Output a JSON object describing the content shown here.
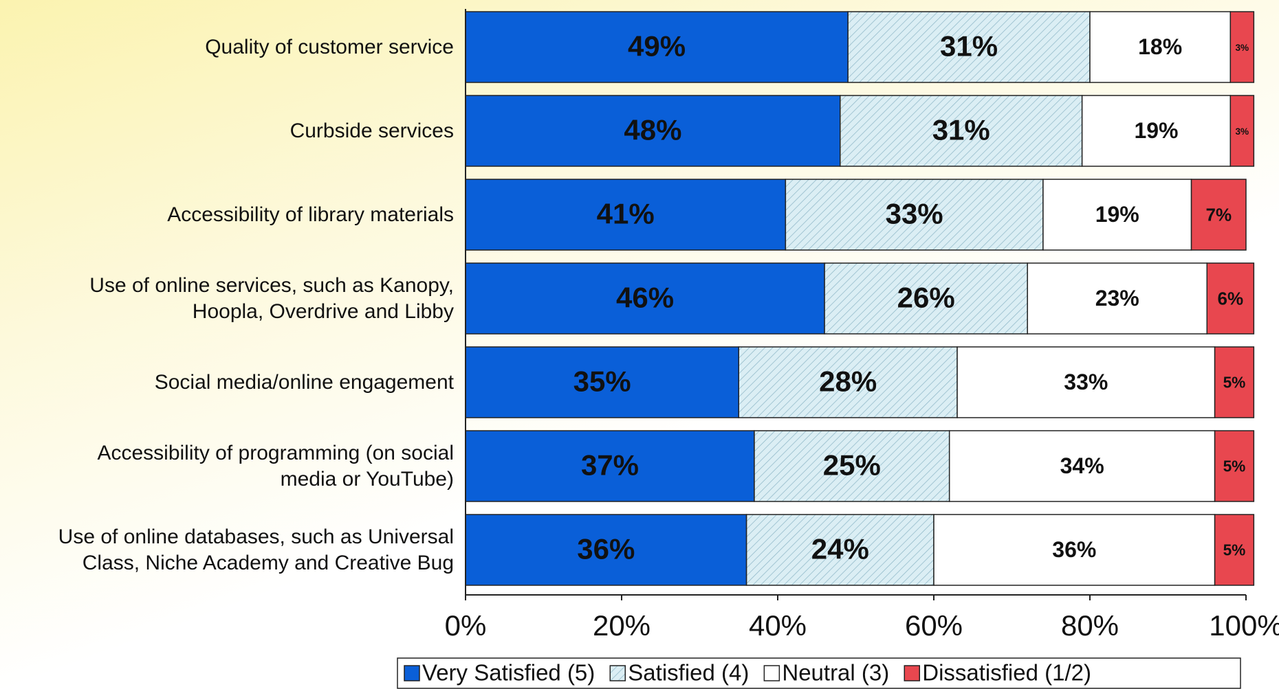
{
  "chart_data": {
    "type": "stacked-bar-horizontal",
    "categories": [
      "Quality of customer service",
      "Curbside services",
      "Accessibility of library materials",
      "Use of online services, such as Kanopy,\nHoopla, Overdrive and Libby",
      "Social media/online engagement",
      "Accessibility of programming (on social\nmedia or YouTube)",
      "Use of online databases, such as Universal\nClass, Niche Academy and Creative Bug"
    ],
    "series": [
      {
        "name": "Very Satisfied (5)",
        "color": "#0a5fd8",
        "values": [
          49,
          48,
          41,
          46,
          35,
          37,
          36
        ],
        "value_labels": [
          "49%",
          "48%",
          "41%",
          "46%",
          "35%",
          "37%",
          "36%"
        ]
      },
      {
        "name": "Satisfied (4)",
        "color": "#dbeef4",
        "hatch": true,
        "values": [
          31,
          31,
          33,
          26,
          28,
          25,
          24
        ],
        "value_labels": [
          "31%",
          "31%",
          "33%",
          "26%",
          "28%",
          "25%",
          "24%"
        ]
      },
      {
        "name": "Neutral (3)",
        "color": "#ffffff",
        "values": [
          18,
          19,
          19,
          23,
          33,
          34,
          36
        ],
        "value_labels": [
          "18%",
          "19%",
          "19%",
          "23%",
          "33%",
          "34%",
          "36%"
        ]
      },
      {
        "name": "Dissatisfied (1/2)",
        "color": "#e8474f",
        "values": [
          3,
          3,
          7,
          6,
          5,
          5,
          5
        ],
        "value_labels": [
          "3%",
          "3%",
          "7%",
          "6%",
          "5%",
          "5%",
          "5%"
        ]
      }
    ],
    "xlim": [
      0,
      100
    ],
    "xticks": [
      {
        "value": 0,
        "label": "0%"
      },
      {
        "value": 20,
        "label": "20%"
      },
      {
        "value": 40,
        "label": "40%"
      },
      {
        "value": 60,
        "label": "60%"
      },
      {
        "value": 80,
        "label": "80%"
      },
      {
        "value": 100,
        "label": "100%"
      }
    ],
    "legend": "bottom"
  }
}
